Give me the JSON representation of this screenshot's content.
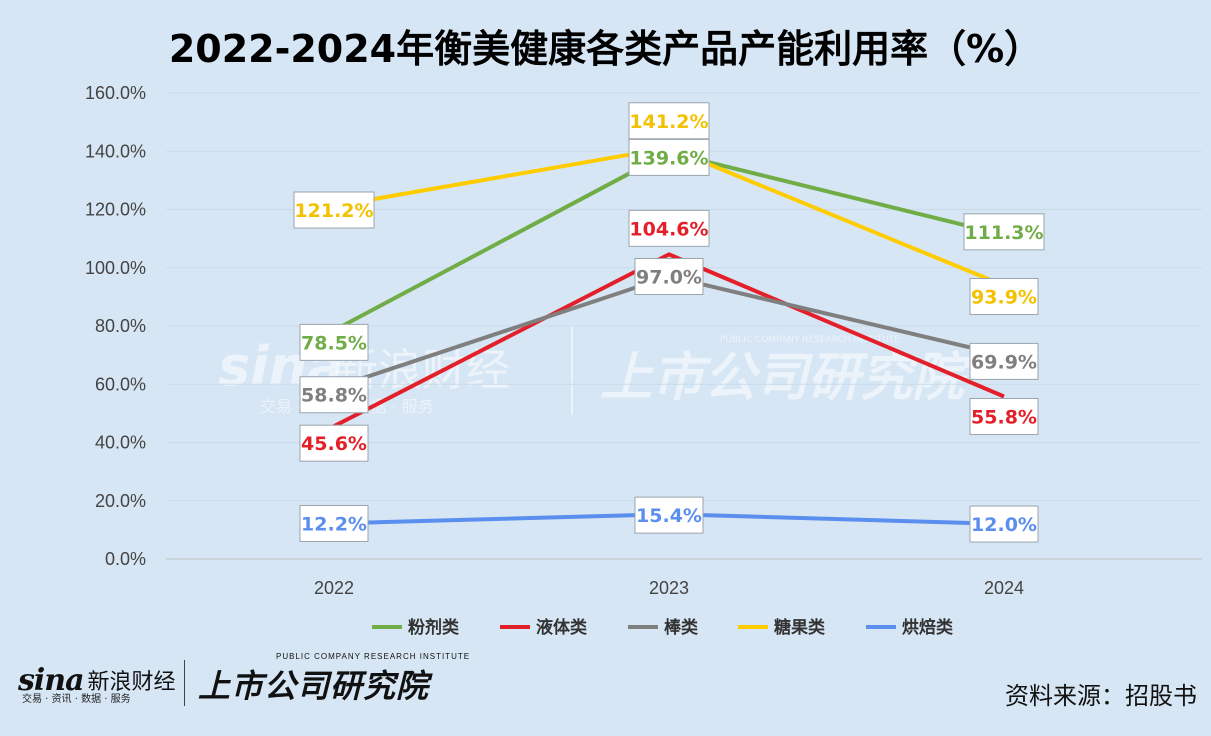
{
  "title": "2022-2024年衡美健康各类产品产能利用率（%）",
  "source_label": "资料来源：招股书",
  "watermark": {
    "sina_mark": "sina",
    "sina_cn": "新浪财经",
    "sina_sub": "交易 · 资讯 · 数据 · 服务",
    "inst_en": "PUBLIC COMPANY RESEARCH INSTITUTE",
    "inst_cn": "上市公司研究院"
  },
  "chart_data": {
    "type": "line",
    "title": "2022-2024年衡美健康各类产品产能利用率（%）",
    "xlabel": "",
    "ylabel": "",
    "categories": [
      "2022",
      "2023",
      "2024"
    ],
    "ylim": [
      0,
      160
    ],
    "yticks": [
      "0.0%",
      "20.0%",
      "40.0%",
      "60.0%",
      "80.0%",
      "100.0%",
      "120.0%",
      "140.0%",
      "160.0%"
    ],
    "grid": true,
    "legend_position": "bottom",
    "series": [
      {
        "name": "粉剂类",
        "color": "#70ad47",
        "values": [
          78.5,
          139.6,
          111.3
        ],
        "labels": [
          "78.5%",
          "139.6%",
          "111.3%"
        ]
      },
      {
        "name": "液体类",
        "color": "#e3202a",
        "values": [
          45.6,
          104.6,
          55.8
        ],
        "labels": [
          "45.6%",
          "104.6%",
          "55.8%"
        ]
      },
      {
        "name": "棒类",
        "color": "#7f7f7f",
        "values": [
          58.8,
          97.0,
          69.9
        ],
        "labels": [
          "58.8%",
          "97.0%",
          "69.9%"
        ]
      },
      {
        "name": "糖果类",
        "color": "#ffcc00",
        "values": [
          121.2,
          141.2,
          93.9
        ],
        "labels": [
          "121.2%",
          "141.2%",
          "93.9%"
        ]
      },
      {
        "name": "烘焙类",
        "color": "#5b8fef",
        "values": [
          12.2,
          15.4,
          12.0
        ],
        "labels": [
          "12.2%",
          "15.4%",
          "12.0%"
        ]
      }
    ]
  }
}
